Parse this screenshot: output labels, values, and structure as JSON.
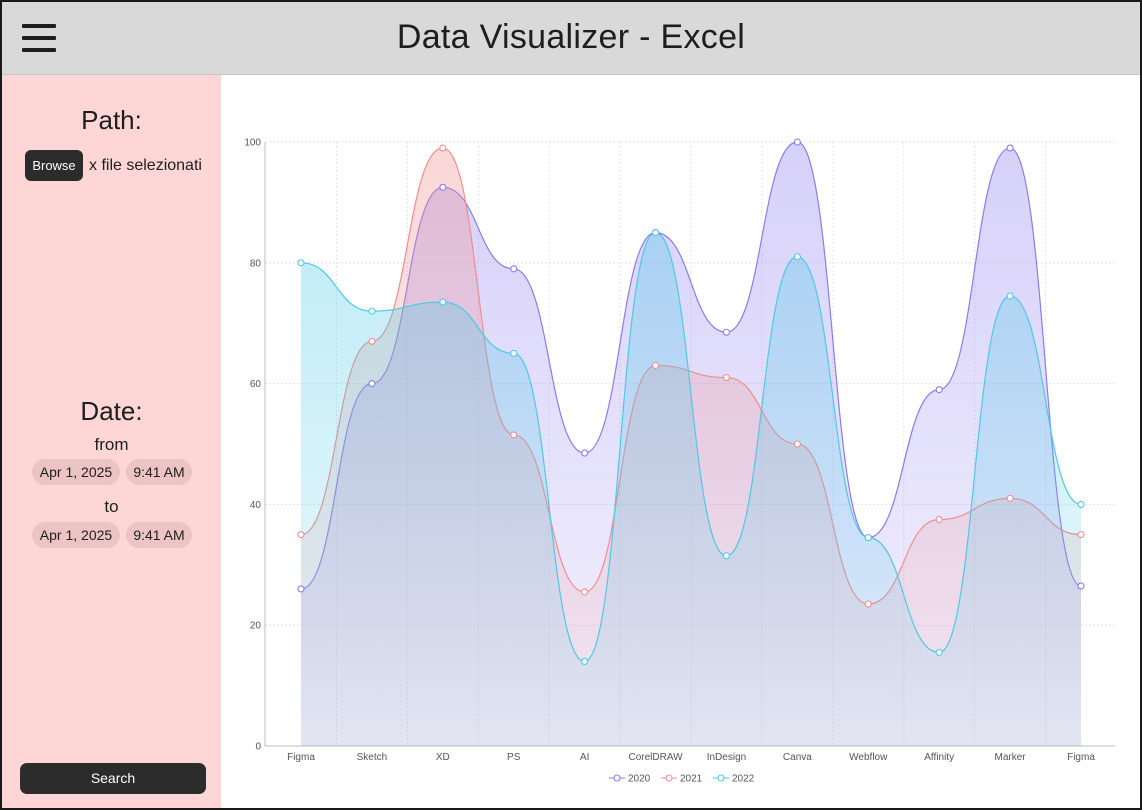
{
  "header": {
    "title": "Data Visualizer - Excel",
    "menu_icon": "hamburger-menu-icon"
  },
  "sidebar": {
    "path_label": "Path:",
    "browse_label": "Browse",
    "file_status": "x file selezionati",
    "date_label": "Date:",
    "from_label": "from",
    "to_label": "to",
    "from_date": "Apr 1, 2025",
    "from_time": "9:41 AM",
    "to_date": "Apr 1, 2025",
    "to_time": "9:41 AM",
    "search_label": "Search"
  },
  "colors": {
    "header_bg": "#d9d9d9",
    "sidebar_bg": "#ffd6d6",
    "pill_bg": "#ecc4c4",
    "button_bg": "#2c2c2c"
  },
  "chart_data": {
    "type": "area",
    "title": "",
    "xlabel": "",
    "ylabel": "",
    "categories": [
      "Figma",
      "Sketch",
      "XD",
      "PS",
      "AI",
      "CorelDRAW",
      "InDesign",
      "Canva",
      "Webflow",
      "Affinity",
      "Marker",
      "Figma"
    ],
    "ylim": [
      0,
      100
    ],
    "yticks": [
      0,
      20,
      40,
      60,
      80,
      100
    ],
    "grid": true,
    "legend": "bottom-center",
    "series": [
      {
        "name": "2020",
        "color": "#8b7bf0",
        "values": [
          26,
          60,
          92.5,
          79,
          48.5,
          85,
          68.5,
          100,
          34.5,
          59,
          99,
          26.5
        ]
      },
      {
        "name": "2021",
        "color": "#f08e8e",
        "values": [
          35,
          67,
          99,
          51.5,
          25.5,
          63,
          61,
          50,
          23.5,
          37.5,
          41,
          35
        ]
      },
      {
        "name": "2022",
        "color": "#4ec9e6",
        "values": [
          80,
          72,
          73.5,
          65,
          14,
          85,
          31.5,
          81,
          34.5,
          15.5,
          74.5,
          40
        ]
      }
    ]
  }
}
